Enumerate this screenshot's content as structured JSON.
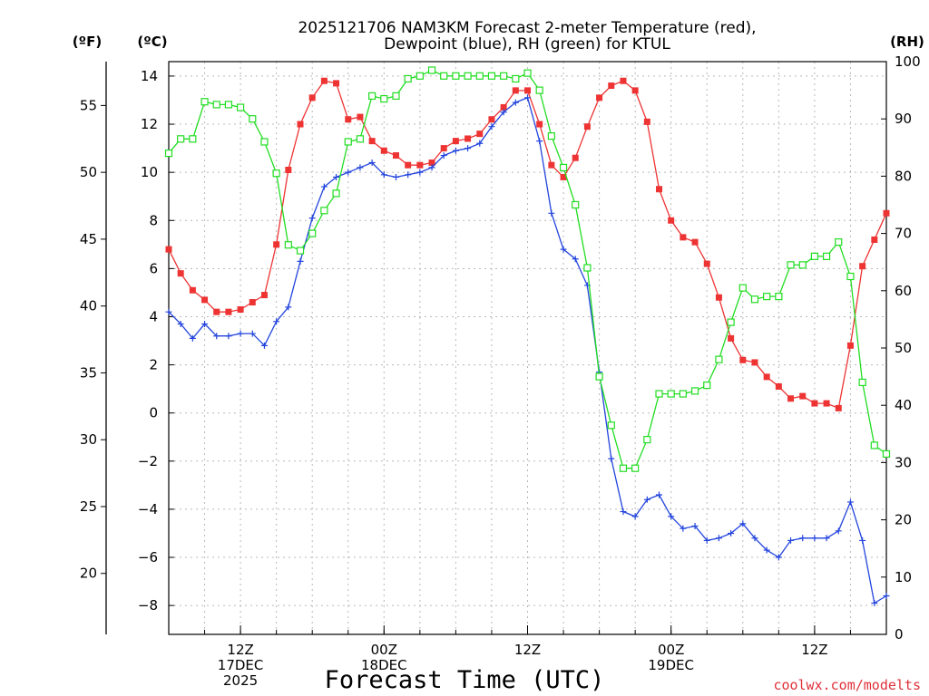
{
  "chart_data": {
    "type": "line",
    "title_line1": "2025121706 NAM3KM Forecast 2-meter Temperature (red),",
    "title_line2": "Dewpoint (blue), RH (green) for KTUL",
    "xlabel": "Forecast Time (UTC)",
    "credit": "coolwx.com/modelts",
    "unit_f": "(ºF)",
    "unit_c": "(ºC)",
    "unit_rh": "(RH)",
    "x_start_hour": 6,
    "x_step_hours": 1,
    "x_range_hours": [
      6,
      66
    ],
    "x_ticks": [
      {
        "hour": 12,
        "lines": [
          "12Z",
          "17DEC",
          "2025"
        ]
      },
      {
        "hour": 24,
        "lines": [
          "00Z",
          "18DEC"
        ]
      },
      {
        "hour": 36,
        "lines": [
          "12Z"
        ]
      },
      {
        "hour": 48,
        "lines": [
          "00Z",
          "19DEC"
        ]
      },
      {
        "hour": 60,
        "lines": [
          "12Z"
        ]
      }
    ],
    "ylim_c": [
      -9.2,
      14.6
    ],
    "ylim_rh": [
      0,
      100
    ],
    "yticks_c": [
      -8,
      -6,
      -4,
      -2,
      0,
      2,
      4,
      6,
      8,
      10,
      12,
      14
    ],
    "yticks_c_labels": [
      "−8",
      "−6",
      "−4",
      "−2",
      "0",
      "2",
      "4",
      "6",
      "8",
      "10",
      "12",
      "14"
    ],
    "yticks_f": [
      20,
      25,
      30,
      35,
      40,
      45,
      50,
      55
    ],
    "yticks_f_labels": [
      "20",
      "25",
      "30",
      "35",
      "40",
      "45",
      "50",
      "55"
    ],
    "yticks_rh": [
      0,
      10,
      20,
      30,
      40,
      50,
      60,
      70,
      80,
      90,
      100
    ],
    "yticks_rh_labels": [
      "0",
      "10",
      "20",
      "30",
      "40",
      "50",
      "60",
      "70",
      "80",
      "90",
      "100"
    ],
    "series": [
      {
        "name": "Temperature",
        "units": "C",
        "axis": "c",
        "color": "#ee3333",
        "marker": "filled-square",
        "values": [
          6.8,
          5.8,
          5.1,
          4.7,
          4.2,
          4.2,
          4.3,
          4.6,
          4.9,
          7.0,
          10.1,
          12.0,
          13.1,
          13.8,
          13.7,
          12.2,
          12.3,
          11.3,
          10.9,
          10.7,
          10.3,
          10.3,
          10.4,
          11.0,
          11.3,
          11.4,
          11.6,
          12.2,
          12.7,
          13.4,
          13.4,
          12.0,
          10.3,
          9.8,
          10.6,
          11.9,
          13.1,
          13.6,
          13.8,
          13.4,
          12.1,
          9.3,
          8.0,
          7.3,
          7.1,
          6.2,
          4.8,
          3.1,
          2.2,
          2.1,
          1.5,
          1.1,
          0.6,
          0.7,
          0.4,
          0.4,
          0.2,
          2.8,
          6.1,
          7.2,
          8.3
        ]
      },
      {
        "name": "Dewpoint",
        "units": "C",
        "axis": "c",
        "color": "#2244dd",
        "marker": "plus",
        "values": [
          4.2,
          3.7,
          3.1,
          3.7,
          3.2,
          3.2,
          3.3,
          3.3,
          2.8,
          3.8,
          4.4,
          6.3,
          8.1,
          9.4,
          9.8,
          10.0,
          10.2,
          10.4,
          9.9,
          9.8,
          9.9,
          10.0,
          10.2,
          10.7,
          10.9,
          11.0,
          11.2,
          11.9,
          12.5,
          12.9,
          13.1,
          11.3,
          8.3,
          6.8,
          6.4,
          5.3,
          1.7,
          -1.9,
          -4.1,
          -4.3,
          -3.6,
          -3.4,
          -4.3,
          -4.8,
          -4.7,
          -5.3,
          -5.2,
          -5.0,
          -4.6,
          -5.2,
          -5.7,
          -6.0,
          -5.3,
          -5.2,
          -5.2,
          -5.2,
          -4.9,
          -3.7,
          -5.3,
          -7.9,
          -7.6
        ]
      },
      {
        "name": "RH",
        "units": "%",
        "axis": "rh",
        "color": "#22dd22",
        "marker": "open-square",
        "values": [
          84,
          86.5,
          86.5,
          93,
          92.5,
          92.5,
          92,
          90,
          86,
          80.5,
          68,
          67,
          70,
          74,
          77,
          86,
          86.5,
          94,
          93.5,
          94,
          97,
          97.5,
          98.5,
          97.5,
          97.5,
          97.5,
          97.5,
          97.5,
          97.5,
          97,
          98,
          95,
          87,
          81.5,
          75,
          64,
          45,
          36.5,
          29,
          29,
          34,
          42,
          42,
          42,
          42.5,
          43.5,
          48,
          54.5,
          60.5,
          58.5,
          59,
          59,
          64.5,
          64.5,
          66,
          66,
          68.5,
          62.5,
          44,
          33,
          31.5
        ]
      }
    ]
  }
}
